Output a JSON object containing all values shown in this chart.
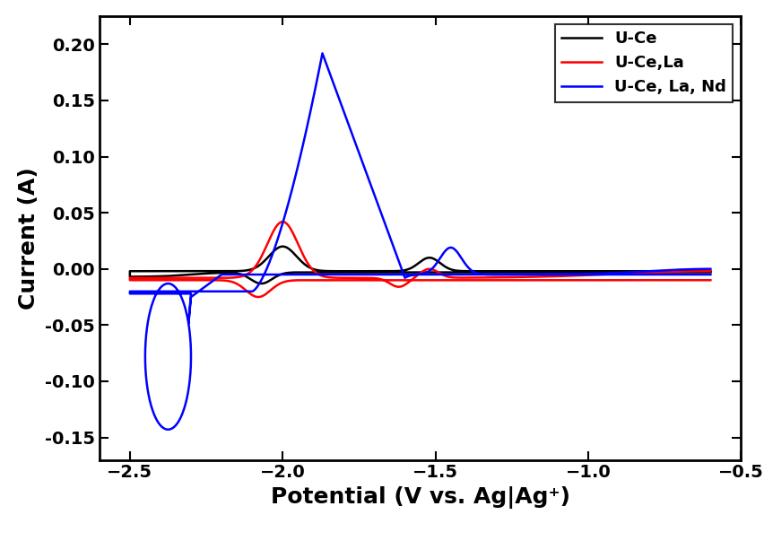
{
  "title": "",
  "xlabel": "Potential (V vs. Ag|Ag⁺)",
  "ylabel": "Current (A)",
  "xlim": [
    -2.6,
    -0.5
  ],
  "ylim": [
    -0.17,
    0.225
  ],
  "xticks": [
    -2.5,
    -2.0,
    -1.5,
    -1.0,
    -0.5
  ],
  "yticks": [
    -0.15,
    -0.1,
    -0.05,
    0.0,
    0.05,
    0.1,
    0.15,
    0.2
  ],
  "legend": [
    "U-Ce",
    "U-Ce,La",
    "U-Ce, La, Nd"
  ],
  "colors": [
    "black",
    "red",
    "blue"
  ],
  "background": "white",
  "xlabel_fontsize": 18,
  "ylabel_fontsize": 18,
  "tick_fontsize": 14,
  "legend_fontsize": 13
}
